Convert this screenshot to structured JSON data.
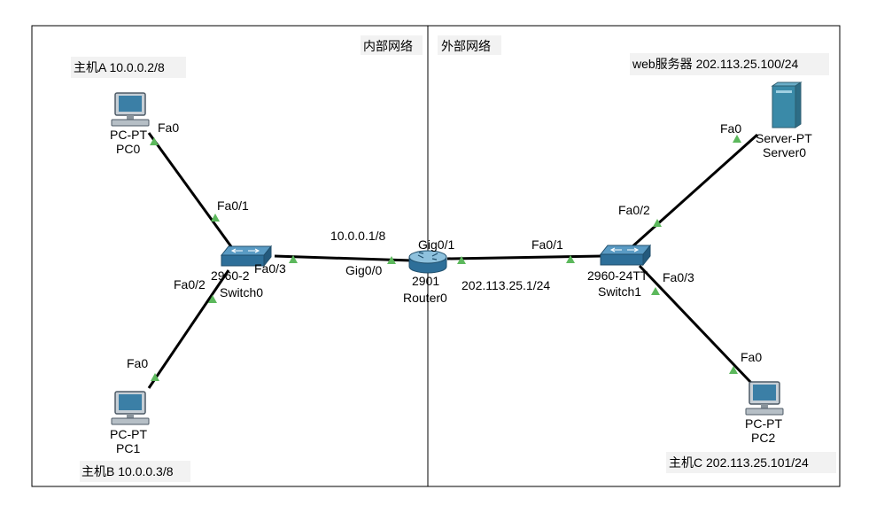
{
  "zones": {
    "inner_label": "内部网络",
    "outer_label": "外部网络"
  },
  "hosts": {
    "a_note": "主机A 10.0.0.2/8",
    "b_note": "主机B 10.0.0.3/8",
    "c_note": "主机C 202.113.25.101/24",
    "web_note": "web服务器 202.113.25.100/24"
  },
  "devices": {
    "pc0": {
      "model": "PC-PT",
      "name": "PC0"
    },
    "pc1": {
      "model": "PC-PT",
      "name": "PC1"
    },
    "pc2": {
      "model": "PC-PT",
      "name": "PC2"
    },
    "server0": {
      "model": "Server-PT",
      "name": "Server0"
    },
    "switch0": {
      "model": "2960-2",
      "name": "Switch0"
    },
    "switch1": {
      "model": "2960-24TT",
      "name": "Switch1"
    },
    "router0": {
      "model": "2901",
      "name": "Router0"
    }
  },
  "ports": {
    "pc0_fa0": "Fa0",
    "sw0_fa01": "Fa0/1",
    "sw0_fa02": "Fa0/2",
    "pc1_fa0": "Fa0",
    "sw0_fa03": "Fa0/3",
    "r0_gig00": "Gig0/0",
    "r0_gig01": "Gig0/1",
    "sw1_fa01": "Fa0/1",
    "sw1_fa02": "Fa0/2",
    "sw1_fa03": "Fa0/3",
    "server0_fa0": "Fa0",
    "pc2_fa0": "Fa0"
  },
  "addresses": {
    "r0_inside": "10.0.0.1/8",
    "r0_outside": "202.113.25.1/24"
  },
  "colors": {
    "link": "#000000",
    "link_up": "#5cb85c",
    "zone_border": "#000000",
    "device_blue": "#2e6f99",
    "server_teal": "#3a8aa8"
  }
}
